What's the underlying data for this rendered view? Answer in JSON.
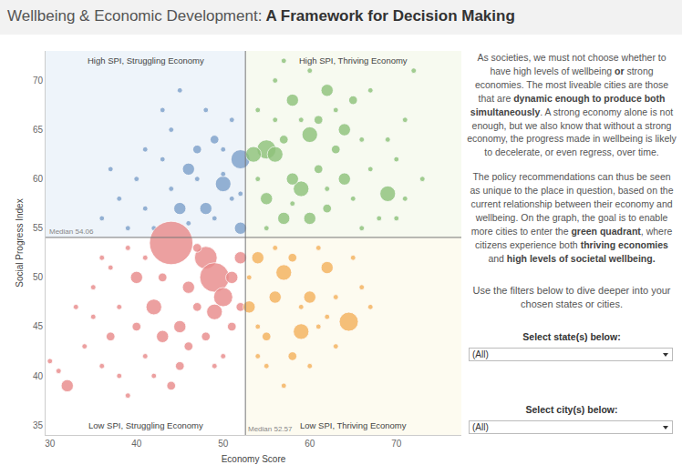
{
  "header": {
    "title": "Wellbeing & Economic Development: A Framework for Decision Making"
  },
  "chart_data": {
    "type": "scatter",
    "marker": "bubble",
    "x_label": "Economy Score",
    "y_label": "Social Progress Index",
    "xlim": [
      29.5,
      77.5
    ],
    "ylim": [
      34,
      73
    ],
    "xticks": [
      30,
      40,
      50,
      60,
      70
    ],
    "yticks": [
      35,
      40,
      45,
      50,
      55,
      60,
      65,
      70
    ],
    "grid": false,
    "reference_lines": [
      {
        "axis": "y",
        "value": 54.06,
        "label": "Median 54.06"
      },
      {
        "axis": "x",
        "value": 52.57,
        "label": "Median 52.57"
      }
    ],
    "series": [
      {
        "name": "High SPI, Struggling Economy",
        "color": "#7fa2cb",
        "x": [
          52,
          50,
          46,
          48,
          52,
          45,
          49,
          47,
          43,
          44,
          40,
          38,
          36,
          41,
          45,
          48,
          51,
          50,
          42,
          39,
          46,
          51,
          44,
          49,
          37,
          47,
          52,
          43,
          50,
          41
        ],
        "values": [
          62,
          59.5,
          61,
          57,
          55,
          57,
          64,
          63,
          62,
          65,
          60,
          58,
          56,
          57,
          69,
          67,
          66,
          60.5,
          55,
          55,
          55.5,
          58,
          59,
          56,
          61,
          60,
          58.5,
          67,
          63,
          63
        ],
        "sizes": [
          5,
          4,
          3,
          3,
          3,
          3,
          2,
          2,
          1,
          1,
          1,
          1,
          1,
          1,
          1,
          1,
          1,
          1,
          1,
          1,
          1,
          1,
          1,
          1,
          1,
          1,
          1,
          1,
          1,
          1
        ]
      },
      {
        "name": "High SPI, Thriving Economy",
        "color": "#8fc27b",
        "x": [
          55,
          56,
          59,
          60,
          64,
          69,
          58,
          62,
          55,
          57,
          60,
          64,
          53.5,
          58,
          56,
          57,
          60,
          61,
          63,
          65,
          66,
          67,
          70,
          71,
          72,
          73,
          68,
          66,
          62,
          59,
          57,
          54,
          55,
          63,
          65,
          70,
          61,
          58,
          54,
          67,
          62,
          56,
          69,
          71
        ],
        "values": [
          63,
          62.5,
          59,
          64.5,
          65,
          58.5,
          68,
          69,
          58,
          56,
          56,
          60,
          62.5,
          60,
          70,
          72,
          71,
          66,
          67,
          68,
          64,
          61,
          62,
          66,
          71,
          60,
          56,
          55,
          57,
          66,
          64,
          67,
          55,
          63,
          58,
          56,
          61,
          57.5,
          60,
          69,
          59,
          66,
          64,
          58
        ],
        "sizes": [
          5,
          4,
          4,
          4,
          3,
          4,
          3,
          3,
          3,
          3,
          3,
          3,
          4,
          3,
          1,
          1,
          1,
          2,
          1,
          2,
          1,
          1,
          1,
          1,
          1,
          1,
          1,
          1,
          2,
          1,
          2,
          1,
          1,
          2,
          1,
          1,
          2,
          1,
          1,
          1,
          1,
          1,
          1,
          1
        ]
      },
      {
        "name": "Low SPI, Struggling Economy",
        "color": "#e98c8c",
        "x": [
          44,
          48,
          49,
          50,
          42,
          49,
          45,
          52,
          51,
          43,
          40,
          46,
          32,
          45,
          30,
          31,
          34,
          35,
          36,
          37,
          38,
          39,
          40,
          41,
          42,
          44,
          46,
          47,
          48,
          50,
          51,
          52,
          35,
          37,
          39,
          41,
          33,
          43,
          47,
          49,
          38,
          36
        ],
        "values": [
          53.5,
          52,
          50,
          48,
          47,
          46.5,
          45,
          52,
          50,
          44,
          50,
          49,
          39,
          41,
          41.5,
          40.5,
          43,
          46,
          41,
          44,
          40,
          38,
          45,
          42,
          40,
          39,
          43,
          47,
          44,
          42,
          45,
          47,
          49,
          51,
          53,
          52,
          47,
          50,
          53,
          41,
          47,
          52
        ],
        "sizes": [
          12,
          6,
          8,
          5,
          4,
          4,
          3,
          3,
          3,
          3,
          3,
          3,
          3,
          2,
          1,
          1,
          1,
          1,
          1,
          2,
          1,
          1,
          2,
          1,
          1,
          2,
          2,
          2,
          2,
          1,
          2,
          2,
          1,
          1,
          1,
          1,
          1,
          2,
          2,
          1,
          1,
          1
        ]
      },
      {
        "name": "Low SPI, Thriving Economy",
        "color": "#f4b35e",
        "x": [
          64.5,
          59,
          57,
          56,
          53,
          62,
          60,
          54,
          55,
          58,
          53,
          54,
          56,
          58,
          59,
          61,
          61,
          63,
          65,
          66,
          57,
          60,
          55,
          63,
          62,
          67,
          54
        ],
        "values": [
          45.5,
          44.5,
          50.5,
          48,
          47,
          51,
          48,
          52,
          44,
          42,
          50,
          45,
          53,
          52,
          47,
          45,
          53,
          48,
          52,
          49,
          39,
          41,
          41,
          43,
          46,
          47,
          42
        ],
        "sizes": [
          5,
          4,
          4,
          3,
          3,
          3,
          3,
          3,
          2,
          2,
          1,
          1,
          1,
          2,
          1,
          1,
          1,
          1,
          1,
          1,
          1,
          1,
          1,
          1,
          1,
          1,
          1
        ]
      }
    ]
  },
  "sidebar": {
    "paragraphs": [
      [
        {
          "text": "As societies, we must not choose whether to have high levels of wellbeing ",
          "bold": false
        },
        {
          "text": "or",
          "bold": true
        },
        {
          "text": " strong economies. The most liveable cities are those that are ",
          "bold": false
        },
        {
          "text": "dynamic enough to produce both simultaneously",
          "bold": true
        },
        {
          "text": ". A strong economy alone is not enough, but we also know that without a strong economy, the progress made in wellbeing is likely to decelerate, or even regress, over time.",
          "bold": false
        }
      ],
      [
        {
          "text": "The policy recommendations can thus be seen as unique to the place in question, based on the current relationship between their economy and wellbeing. On the graph, the goal is to enable more cities to enter the ",
          "bold": false
        },
        {
          "text": "green quadrant",
          "bold": true
        },
        {
          "text": ", where citizens experience both ",
          "bold": false
        },
        {
          "text": "thriving economies",
          "bold": true
        },
        {
          "text": " and ",
          "bold": false
        },
        {
          "text": "high levels of societal wellbeing.",
          "bold": true
        }
      ]
    ],
    "filter_note": "Use the filters below to dive deeper into your chosen states or cities.",
    "filters": [
      {
        "label": "Select state(s) below:",
        "value": "(All)"
      },
      {
        "label": "Select city(s) below:",
        "value": "(All)"
      }
    ]
  }
}
